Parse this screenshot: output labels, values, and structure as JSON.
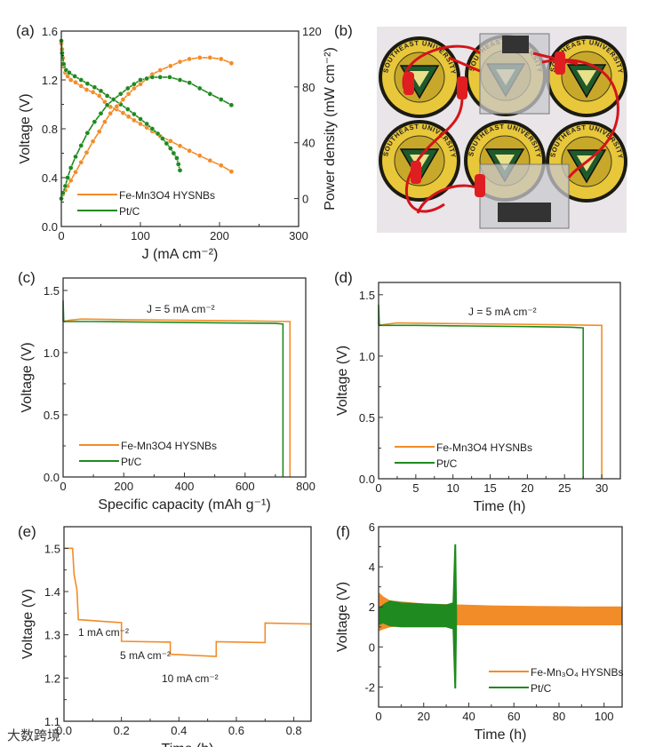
{
  "colors": {
    "fe": "#f28c28",
    "pt": "#1f8a1f",
    "axis": "#333333"
  },
  "photo": {
    "panel_label": "(b)",
    "badge_text": "SOUTHEAST UNIVERSITY"
  },
  "watermark": "大数跨境",
  "chart_data": [
    {
      "id": "a",
      "panel_label": "(a)",
      "type": "line",
      "xlabel": "J (mA cm⁻²)",
      "ylabel": "Voltage (V)",
      "ylabel_right": "Power density (mW cm⁻²)",
      "xlim": [
        0,
        300
      ],
      "ylim": [
        0,
        1.6
      ],
      "ylim_right": [
        -20,
        120
      ],
      "xticks": [
        0,
        100,
        200,
        300
      ],
      "yticks": [
        0.0,
        0.4,
        0.8,
        1.2,
        1.6
      ],
      "yticks_right": [
        0,
        40,
        80,
        120
      ],
      "ytick_decimals": 1,
      "legend": [
        "Fe-Mn3O4 HYSNBs",
        "Pt/C"
      ],
      "legend_position": "bottom-left",
      "series": [
        {
          "name": "Fe-Mn3O4 HYSNBs polarization",
          "color": "fe",
          "axis": "left",
          "markers": true,
          "x": [
            0,
            1,
            2,
            3,
            5,
            8,
            12,
            18,
            25,
            32,
            40,
            48,
            55,
            62,
            70,
            78,
            85,
            92,
            100,
            108,
            115,
            125,
            138,
            150,
            162,
            175,
            188,
            202,
            215
          ],
          "y": [
            1.5,
            1.45,
            1.38,
            1.31,
            1.26,
            1.23,
            1.2,
            1.18,
            1.15,
            1.12,
            1.1,
            1.07,
            1.02,
            0.98,
            0.96,
            0.93,
            0.9,
            0.87,
            0.84,
            0.81,
            0.78,
            0.74,
            0.7,
            0.66,
            0.62,
            0.58,
            0.54,
            0.5,
            0.45
          ]
        },
        {
          "name": "Pt/C polarization",
          "color": "pt",
          "axis": "left",
          "markers": true,
          "x": [
            0,
            1,
            3,
            6,
            10,
            17,
            25,
            33,
            42,
            50,
            58,
            66,
            75,
            84,
            92,
            100,
            108,
            115,
            122,
            128,
            133,
            138,
            142,
            146,
            148,
            150
          ],
          "y": [
            1.52,
            1.42,
            1.33,
            1.28,
            1.26,
            1.23,
            1.2,
            1.17,
            1.14,
            1.11,
            1.07,
            1.04,
            1.0,
            0.96,
            0.92,
            0.88,
            0.84,
            0.8,
            0.76,
            0.72,
            0.68,
            0.64,
            0.6,
            0.56,
            0.51,
            0.46
          ]
        },
        {
          "name": "Fe-Mn3O4 HYSNBs power density",
          "color": "fe",
          "axis": "right",
          "markers": true,
          "x": [
            0,
            2,
            5,
            8,
            12,
            18,
            25,
            32,
            40,
            48,
            55,
            62,
            70,
            78,
            85,
            92,
            100,
            108,
            115,
            125,
            138,
            150,
            162,
            175,
            188,
            202,
            215
          ],
          "y": [
            0,
            3,
            6,
            9,
            13,
            19,
            26,
            33,
            41,
            48,
            55,
            61,
            66,
            71,
            75,
            79,
            82,
            86,
            89,
            92,
            95,
            98,
            100,
            101,
            101,
            100,
            97
          ]
        },
        {
          "name": "Pt/C power density",
          "color": "pt",
          "axis": "right",
          "markers": true,
          "x": [
            0,
            2,
            5,
            8,
            12,
            18,
            25,
            33,
            42,
            50,
            58,
            66,
            75,
            84,
            92,
            100,
            108,
            115,
            125,
            137,
            150,
            162,
            175,
            188,
            202,
            215
          ],
          "y": [
            0,
            4,
            9,
            15,
            22,
            30,
            38,
            47,
            55,
            61,
            67,
            71,
            75,
            79,
            82,
            85,
            86,
            87,
            87,
            87,
            85,
            83,
            79,
            75,
            71,
            67
          ]
        }
      ]
    },
    {
      "id": "c",
      "panel_label": "(c)",
      "type": "line",
      "xlabel": "Specific capacity (mAh g⁻¹)",
      "ylabel": "Voltage (V)",
      "xlim": [
        0,
        800
      ],
      "ylim": [
        0,
        1.6
      ],
      "xticks": [
        0,
        200,
        400,
        600,
        800
      ],
      "yticks": [
        0.0,
        0.5,
        1.0,
        1.5
      ],
      "ytick_decimals": 1,
      "annotations": [
        "J = 5 mA cm⁻²"
      ],
      "legend": [
        "Fe-Mn3O4 HYSNBs",
        "Pt/C"
      ],
      "legend_position": "bottom-left",
      "series": [
        {
          "name": "Fe-Mn3O4 HYSNBs",
          "color": "fe",
          "x": [
            0,
            20,
            60,
            200,
            400,
            600,
            748,
            748
          ],
          "y": [
            1.25,
            1.26,
            1.27,
            1.265,
            1.26,
            1.255,
            1.25,
            0
          ]
        },
        {
          "name": "Pt/C",
          "color": "pt",
          "x": [
            0,
            0,
            2,
            100,
            300,
            500,
            700,
            725,
            725
          ],
          "y": [
            1.25,
            1.42,
            1.25,
            1.25,
            1.245,
            1.24,
            1.235,
            1.23,
            0
          ]
        }
      ]
    },
    {
      "id": "d",
      "panel_label": "(d)",
      "type": "line",
      "xlabel": "Time (h)",
      "ylabel": "Voltage (V)",
      "xlim": [
        0,
        32.5
      ],
      "ylim": [
        0,
        1.6
      ],
      "xticks": [
        0,
        5,
        10,
        15,
        20,
        25,
        30
      ],
      "yticks": [
        0.0,
        0.5,
        1.0,
        1.5
      ],
      "ytick_decimals": 1,
      "annotations": [
        "J = 5 mA cm⁻²"
      ],
      "legend": [
        "Fe-Mn3O4 HYSNBs",
        "Pt/C"
      ],
      "legend_position": "bottom-left",
      "series": [
        {
          "name": "Fe-Mn3O4 HYSNBs",
          "color": "fe",
          "x": [
            0,
            1,
            2.5,
            10,
            18,
            25,
            30,
            30
          ],
          "y": [
            1.25,
            1.26,
            1.27,
            1.265,
            1.26,
            1.255,
            1.25,
            0
          ]
        },
        {
          "name": "Pt/C",
          "color": "pt",
          "x": [
            0,
            0,
            0.1,
            5,
            12,
            20,
            26,
            27.5,
            27.5
          ],
          "y": [
            1.25,
            1.42,
            1.25,
            1.25,
            1.245,
            1.24,
            1.235,
            1.23,
            0
          ]
        }
      ]
    },
    {
      "id": "e",
      "panel_label": "(e)",
      "type": "line",
      "xlabel": "Time (h)",
      "ylabel": "Voltage (V)",
      "xlim": [
        0,
        0.86
      ],
      "ylim": [
        1.1,
        1.55
      ],
      "xticks": [
        0.0,
        0.2,
        0.4,
        0.6,
        0.8
      ],
      "yticks": [
        1.1,
        1.2,
        1.3,
        1.4,
        1.5
      ],
      "ytick_decimals": 1,
      "annotations": [
        "1 mA cm⁻²",
        "5 mA cm⁻²",
        "10 mA cm⁻²"
      ],
      "series": [
        {
          "name": "Fe-Mn3O4 HYSNBs",
          "color": "fe",
          "x": [
            0,
            0.03,
            0.035,
            0.045,
            0.05,
            0.2,
            0.2,
            0.37,
            0.37,
            0.53,
            0.53,
            0.7,
            0.7,
            0.86
          ],
          "y": [
            1.5,
            1.5,
            1.44,
            1.405,
            1.335,
            1.328,
            1.285,
            1.283,
            1.255,
            1.25,
            1.284,
            1.282,
            1.327,
            1.325
          ]
        }
      ]
    },
    {
      "id": "f",
      "panel_label": "(f)",
      "type": "area",
      "xlabel": "Time (h)",
      "ylabel": "Voltage (V)",
      "xlim": [
        0,
        108
      ],
      "ylim": [
        -3,
        6
      ],
      "xticks": [
        0,
        20,
        40,
        60,
        80,
        100
      ],
      "yticks": [
        -2,
        0,
        2,
        4,
        6
      ],
      "ytick_decimals": 0,
      "legend": [
        "Fe-Mn₃O₄ HYSNBs",
        "Pt/C"
      ],
      "legend_position": "bottom-right",
      "series": [
        {
          "name": "Fe-Mn₃O₄ HYSNBs",
          "color": "fe",
          "x": [
            0,
            2,
            5,
            10,
            20,
            34,
            35,
            50,
            70,
            90,
            108
          ],
          "upper": [
            2.7,
            2.5,
            2.3,
            2.25,
            2.15,
            2.1,
            2.1,
            2.05,
            2.02,
            2.0,
            2.0
          ],
          "lower": [
            0.8,
            0.9,
            1.0,
            1.05,
            1.1,
            1.1,
            1.1,
            1.1,
            1.1,
            1.1,
            1.1
          ]
        },
        {
          "name": "Pt/C",
          "color": "pt",
          "x": [
            0,
            2,
            5,
            10,
            20,
            30,
            33,
            33.8,
            34.2,
            34.6
          ],
          "upper": [
            1.9,
            2.1,
            2.3,
            2.2,
            2.15,
            2.1,
            2.2,
            5.1,
            5.1,
            1.6
          ],
          "lower": [
            1.1,
            1.2,
            1.05,
            1.0,
            1.0,
            1.0,
            0.9,
            -2.05,
            -2.05,
            1.4
          ]
        }
      ]
    }
  ]
}
